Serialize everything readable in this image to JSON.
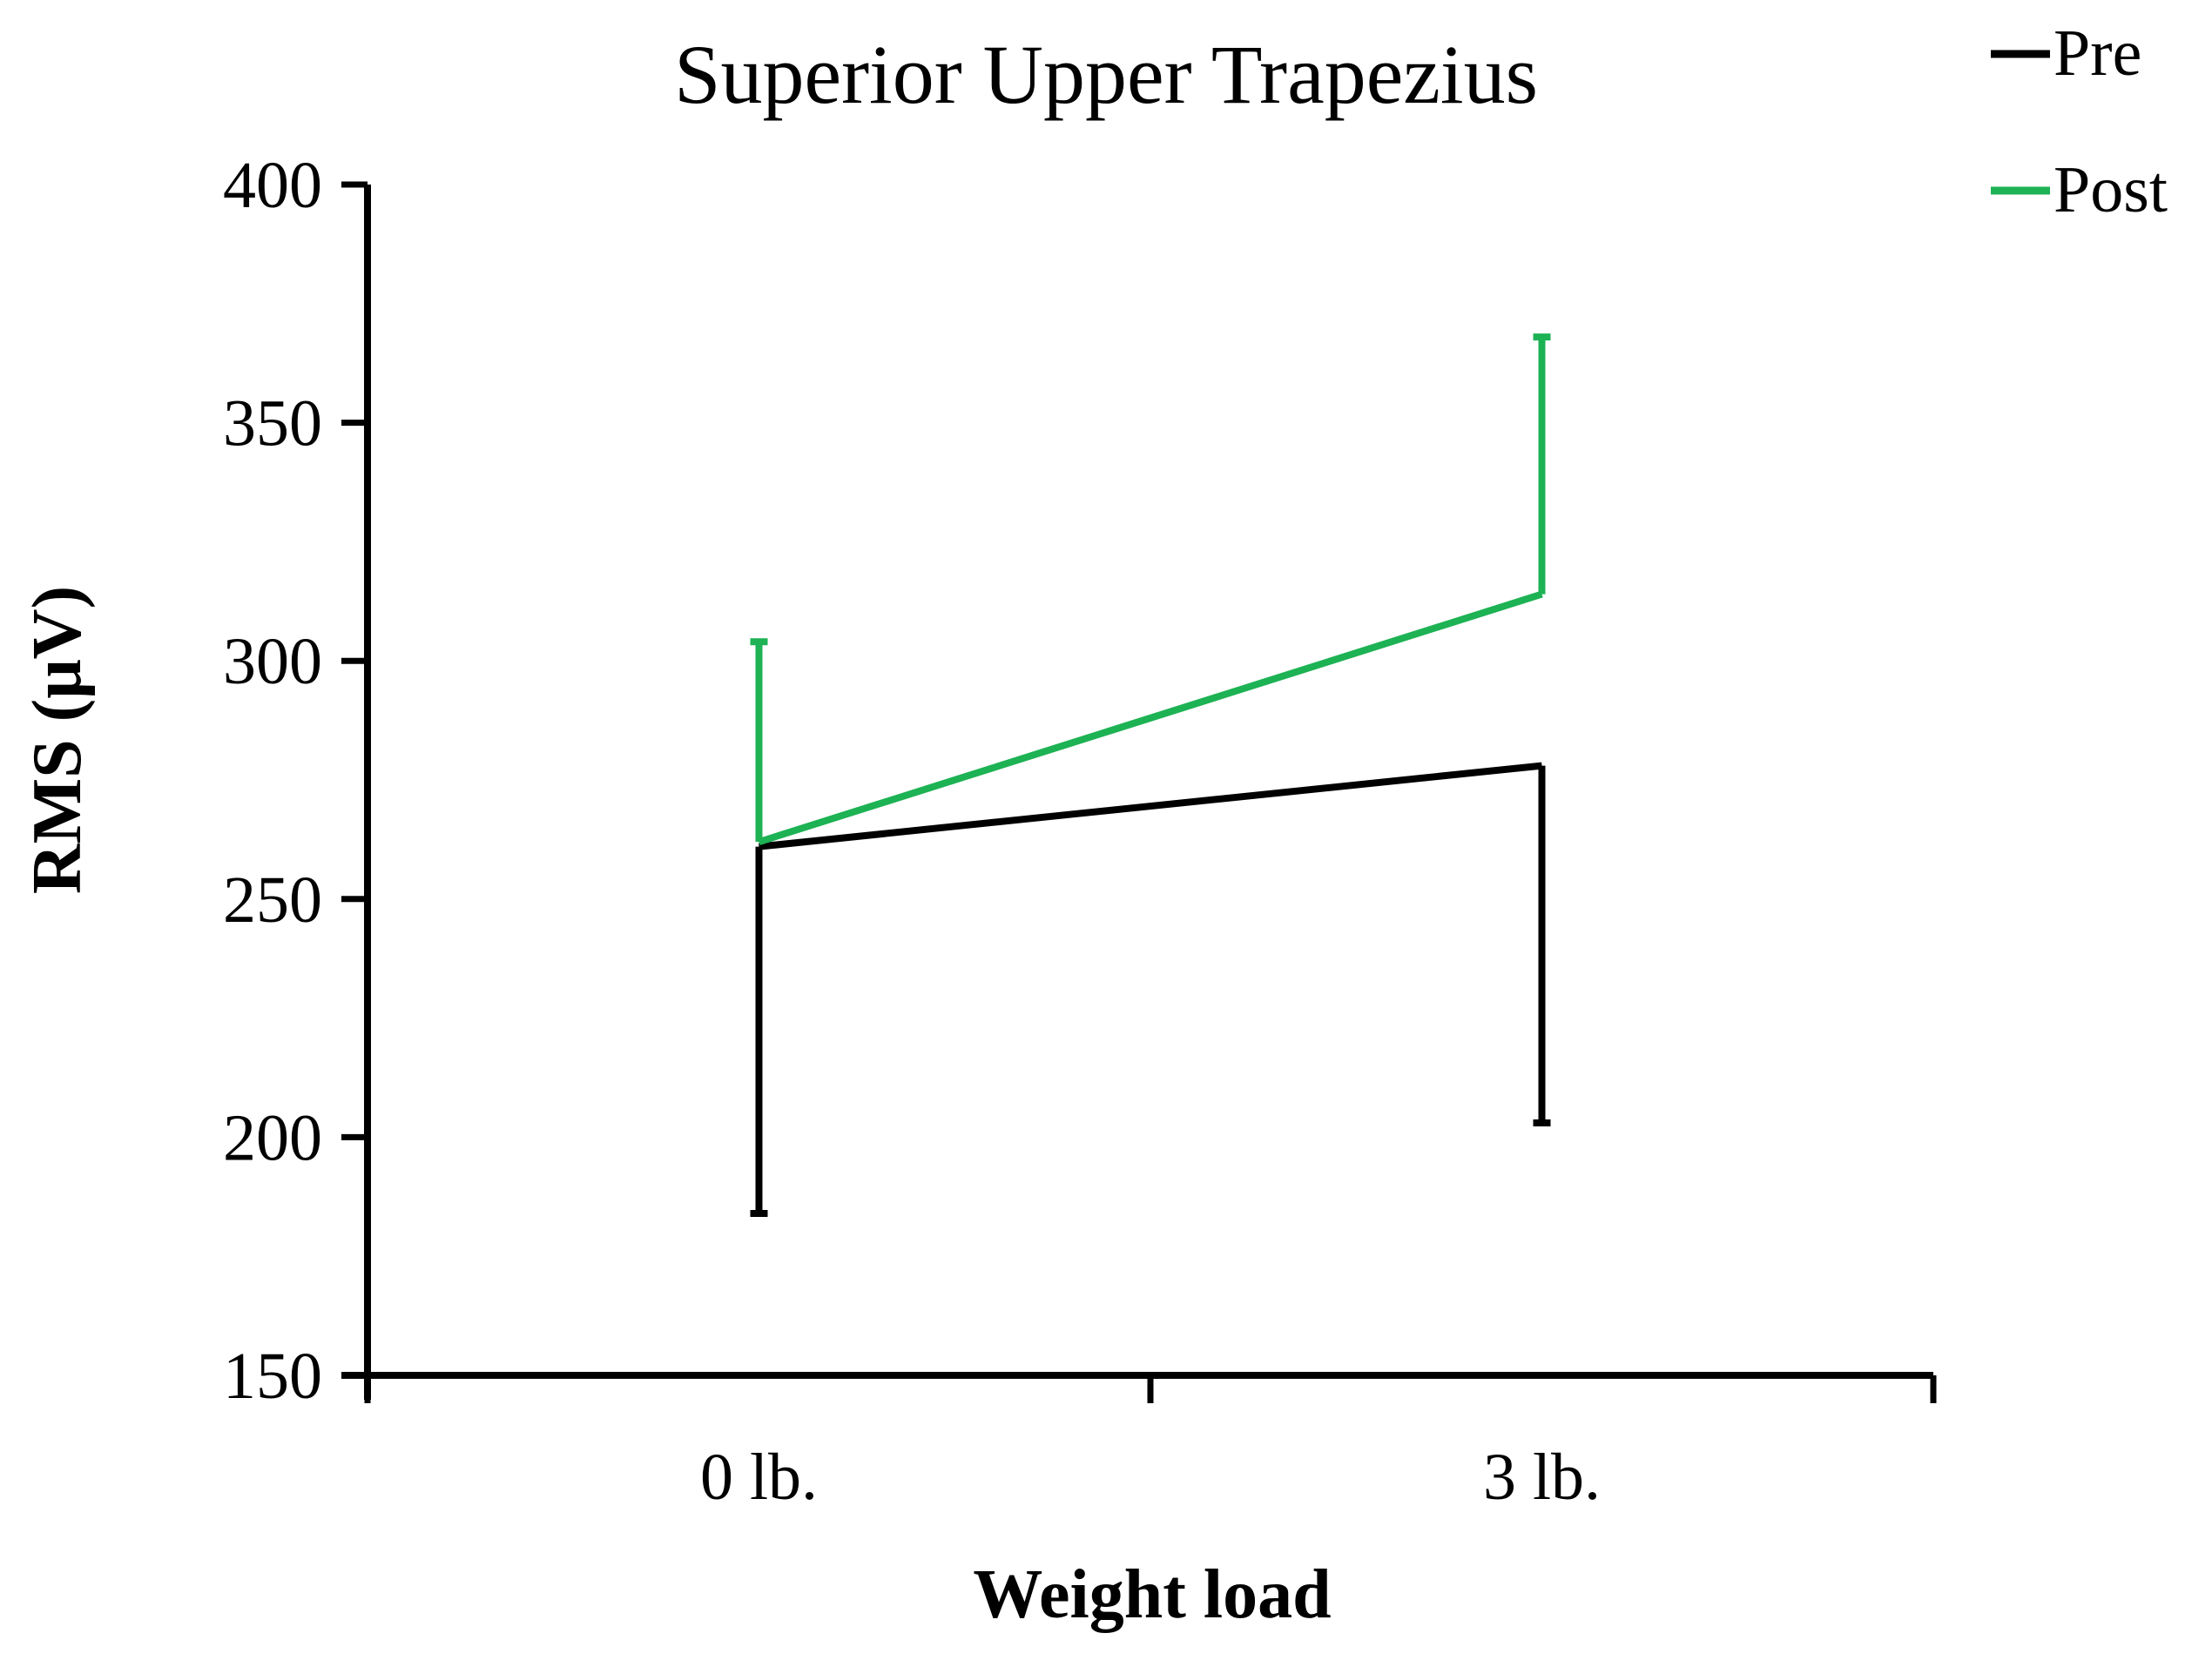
{
  "chart_data": {
    "type": "line",
    "title": "Superior Upper Trapezius",
    "xlabel": "Weight load",
    "ylabel": "RMS (μV)",
    "categories": [
      "0 lb.",
      "3 lb."
    ],
    "ylim": [
      150,
      400
    ],
    "yticks": [
      150,
      200,
      250,
      300,
      350,
      400
    ],
    "grid": false,
    "legend_position": "top-right",
    "error_bars": "one-sided (Pre downward, Post upward)",
    "series": [
      {
        "name": "Pre",
        "color": "#000000",
        "values": [
          261,
          278
        ],
        "error_low": [
          184,
          203
        ]
      },
      {
        "name": "Post",
        "color": "#1db254",
        "values": [
          262,
          314
        ],
        "error_high": [
          304,
          368
        ]
      }
    ]
  }
}
